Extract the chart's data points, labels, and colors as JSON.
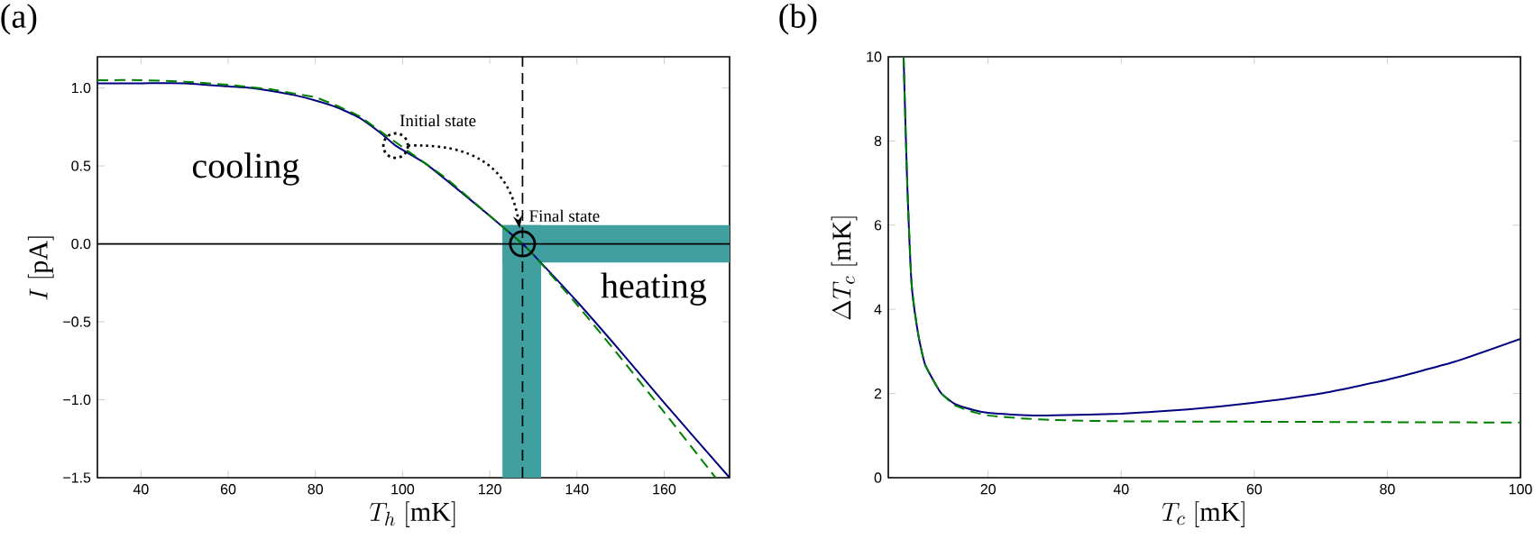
{
  "chart_data": [
    {
      "type": "line",
      "title": "(a)",
      "xlabel": "T_h\\ [\\mathrm{mK}]",
      "ylabel": "I\\ [\\mathrm{pA}]",
      "xlim": [
        30,
        175
      ],
      "ylim": [
        -1.5,
        1.2
      ],
      "xticks": [
        40,
        60,
        80,
        100,
        120,
        140,
        160
      ],
      "yticks": [
        {
          "value": -1.5,
          "label": "−1.5"
        },
        {
          "value": -1.0,
          "label": "−1.0"
        },
        {
          "value": -0.5,
          "label": "−0.5"
        },
        {
          "value": 0,
          "label": "0.0"
        },
        {
          "value": 0.5,
          "label": "0.5"
        },
        {
          "value": 1.0,
          "label": "1.0"
        }
      ],
      "marker": "none",
      "series": [
        {
          "color": "#000080",
          "line_style": "solid",
          "x": [
            30,
            40,
            50,
            60,
            65,
            70,
            75,
            80,
            85,
            90,
            95,
            98.4,
            105,
            110,
            120,
            127.5,
            130,
            140,
            150,
            160,
            170,
            175
          ],
          "values": [
            1.03,
            1.03,
            1.03,
            1.01,
            1.0,
            0.98,
            0.955,
            0.92,
            0.875,
            0.81,
            0.71,
            0.63,
            0.52,
            0.41,
            0.18,
            0,
            -0.07,
            -0.37,
            -0.69,
            -1.02,
            -1.34,
            -1.5
          ]
        },
        {
          "color": "#008000",
          "line_style": "dashed",
          "x": [
            30,
            40,
            50,
            60,
            65,
            70,
            75,
            80,
            85,
            90,
            95,
            100,
            105,
            110,
            120,
            127.5,
            130,
            140,
            150,
            160,
            171.8
          ],
          "values": [
            1.05,
            1.05,
            1.04,
            1.02,
            1.005,
            0.99,
            0.965,
            0.94,
            0.885,
            0.82,
            0.72,
            0.62,
            0.52,
            0.42,
            0.18,
            0,
            -0.07,
            -0.39,
            -0.73,
            -1.08,
            -1.5
          ]
        }
      ],
      "ref_lines": [
        {
          "axis": "y",
          "value": 0,
          "color": "#000000",
          "line_style": "solid"
        },
        {
          "axis": "x",
          "value": 127.5,
          "color": "#000000",
          "line_style": "dashed"
        }
      ],
      "bands": [
        {
          "axis": "x",
          "from": 122.9,
          "to": 131.8,
          "color": "#40a0a0"
        },
        {
          "axis": "y",
          "from": -0.12,
          "to": 0.12,
          "color": "#40a0a0"
        }
      ],
      "annotations": [
        "cooling",
        {
          "text": "Initial state",
          "x": 98.4,
          "y": 0.63
        },
        {
          "text": "Final state",
          "x": 127.5,
          "y": 0
        },
        "heating"
      ]
    },
    {
      "type": "line",
      "title": "(b)",
      "xlabel": "T_c\\ [\\mathrm{mK}]",
      "ylabel": "\\Delta T_c\\ [\\mathrm{mK}]",
      "xlim": [
        5,
        100
      ],
      "ylim": [
        0,
        10
      ],
      "xticks": [
        20,
        40,
        60,
        80,
        100
      ],
      "yticks": [
        0,
        2,
        4,
        6,
        8,
        10
      ],
      "marker": "none",
      "series": [
        {
          "color": "#000080",
          "line_style": "solid",
          "x": [
            7.3,
            7.8,
            8.5,
            9.5,
            10.5,
            12,
            13,
            15,
            18,
            20,
            25,
            30,
            40,
            50,
            60,
            70,
            80,
            90,
            100
          ],
          "values": [
            10,
            7.2,
            4.6,
            3.4,
            2.7,
            2.25,
            2.0,
            1.75,
            1.6,
            1.54,
            1.49,
            1.48,
            1.52,
            1.62,
            1.78,
            2.0,
            2.33,
            2.75,
            3.3
          ]
        },
        {
          "color": "#008000",
          "line_style": "dashed",
          "x": [
            7.3,
            7.8,
            8.5,
            9.5,
            10.5,
            12,
            13,
            15,
            18,
            20,
            25,
            30,
            40,
            60,
            80,
            100
          ],
          "values": [
            10,
            7.2,
            4.6,
            3.4,
            2.7,
            2.25,
            2.0,
            1.72,
            1.55,
            1.48,
            1.41,
            1.37,
            1.34,
            1.33,
            1.32,
            1.31
          ]
        }
      ]
    }
  ]
}
